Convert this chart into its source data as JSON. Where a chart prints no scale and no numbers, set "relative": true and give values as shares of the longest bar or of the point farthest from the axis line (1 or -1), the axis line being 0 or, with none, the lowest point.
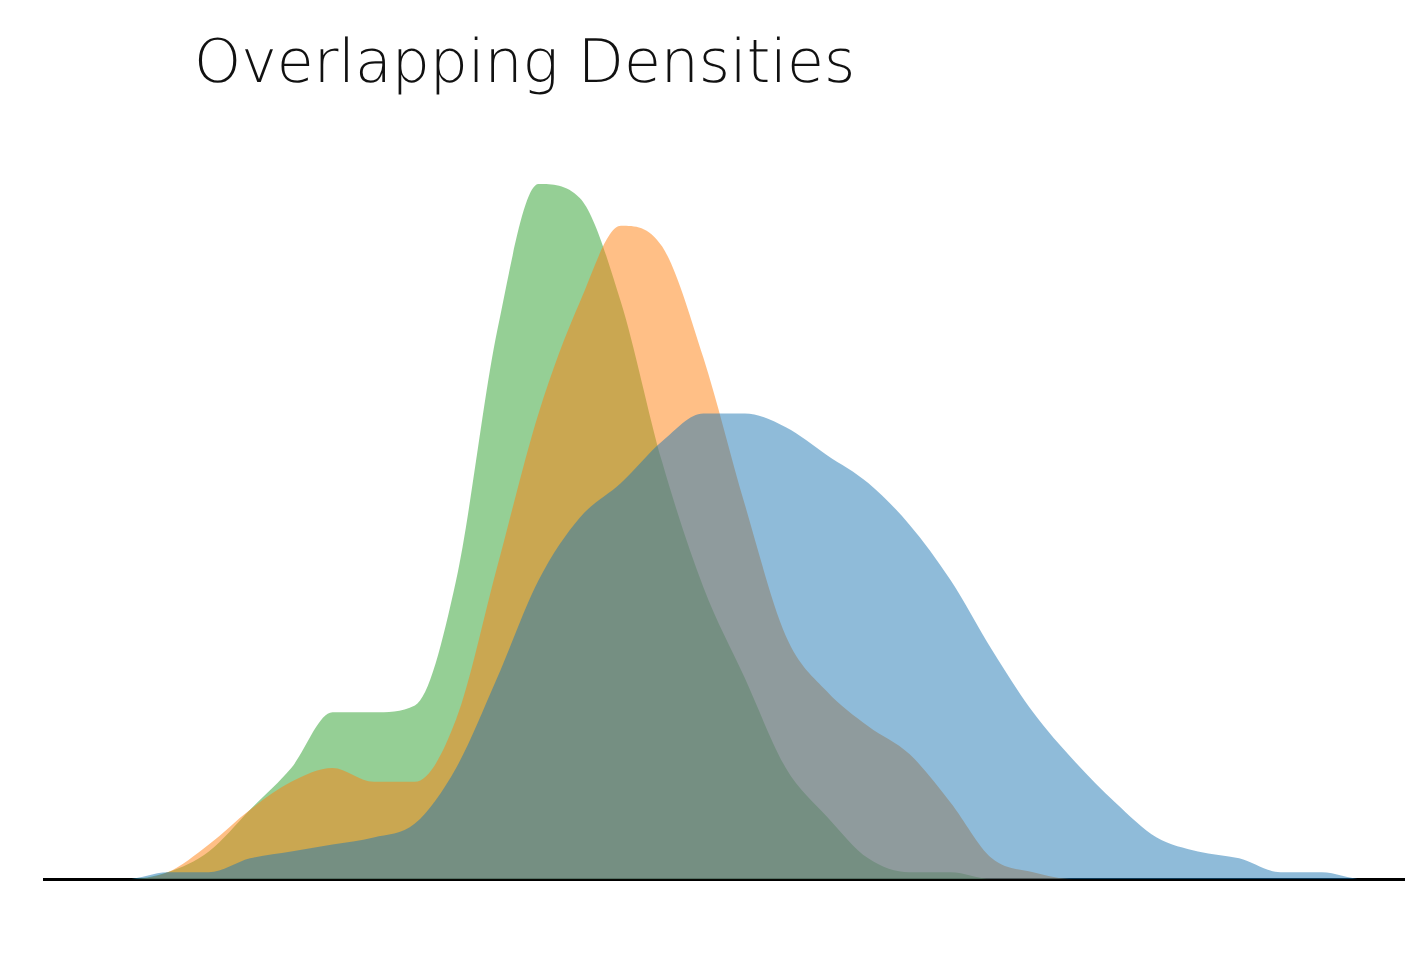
{
  "chart_data": {
    "type": "area",
    "title": "Overlapping Densities",
    "relative": true,
    "grid": false,
    "legend": false,
    "marker": "none",
    "categories": [
      null,
      null,
      null,
      null,
      null,
      null,
      null,
      null,
      null,
      null,
      null,
      null,
      null,
      null,
      null,
      null,
      null,
      null,
      null,
      null,
      null,
      null,
      null,
      null,
      null,
      null,
      null,
      null,
      null,
      null,
      null,
      null,
      null,
      null
    ],
    "series": [
      {
        "color": "#1f77b4",
        "values": [
          0,
          0,
          0,
          0.01,
          0.01,
          0.03,
          0.04,
          0.05,
          0.06,
          0.08,
          0.16,
          0.29,
          0.43,
          0.52,
          0.57,
          0.63,
          0.67,
          0.67,
          0.65,
          0.61,
          0.57,
          0.51,
          0.43,
          0.33,
          0.24,
          0.17,
          0.11,
          0.06,
          0.04,
          0.03,
          0.01,
          0.01,
          0,
          0
        ]
      },
      {
        "color": "#ff7f0e",
        "values": [
          0,
          0,
          0,
          0.01,
          0.05,
          0.1,
          0.14,
          0.16,
          0.14,
          0.14,
          0.23,
          0.45,
          0.67,
          0.83,
          0.94,
          0.91,
          0.75,
          0.54,
          0.35,
          0.27,
          0.22,
          0.18,
          0.11,
          0.03,
          0.01,
          0,
          0,
          0,
          0,
          0,
          0,
          0,
          0,
          0
        ]
      },
      {
        "color": "#2ca02c",
        "values": [
          0,
          0,
          0,
          0.01,
          0.04,
          0.1,
          0.16,
          0.24,
          0.24,
          0.25,
          0.43,
          0.79,
          1,
          0.98,
          0.83,
          0.6,
          0.42,
          0.29,
          0.16,
          0.09,
          0.03,
          0.01,
          0.01,
          0,
          0,
          0,
          0,
          0,
          0,
          0,
          0,
          0,
          0,
          0
        ]
      }
    ]
  }
}
